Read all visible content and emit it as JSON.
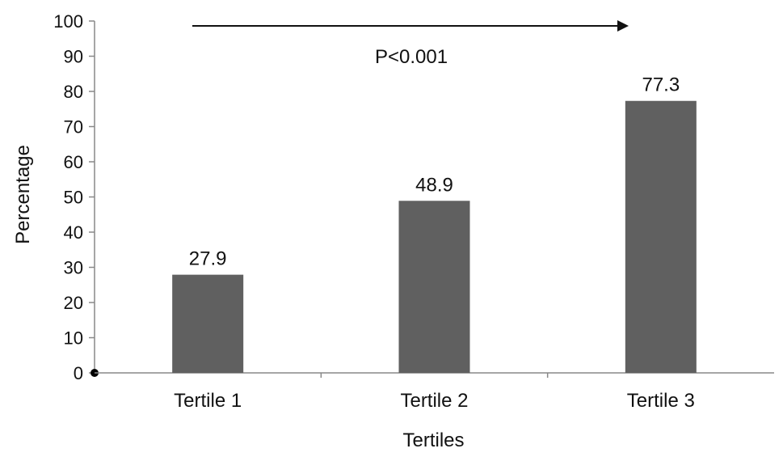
{
  "chart_data": {
    "type": "bar",
    "categories": [
      "Tertile 1",
      "Tertile 2",
      "Tertile 3"
    ],
    "values": [
      27.9,
      48.9,
      77.3
    ],
    "data_labels": [
      "27.9",
      "48.9",
      "77.3"
    ],
    "title": "",
    "xlabel": "Tertiles",
    "ylabel": "Percentage",
    "ylim": [
      0,
      100
    ],
    "yticks": [
      0,
      10,
      20,
      30,
      40,
      50,
      60,
      70,
      80,
      90,
      100
    ],
    "grid": false,
    "legend": "none",
    "bar_color": "#606060",
    "annotation": {
      "text": "P<0.001",
      "arrow_direction": "right"
    }
  }
}
